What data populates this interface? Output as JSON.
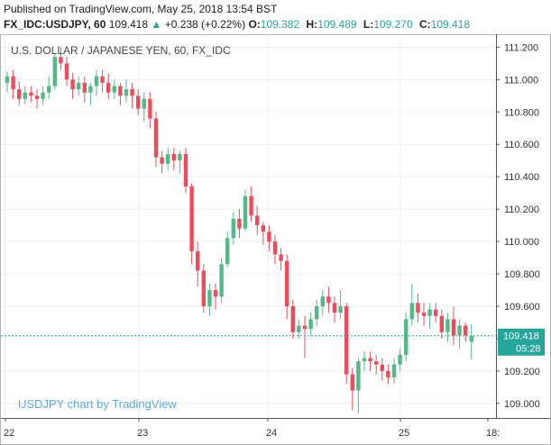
{
  "header": {
    "published": "Published on TradingView.com, May 25, 2018 13:54 BST",
    "symbol": "FX_IDC:USDJPY, 60",
    "last": "109.418",
    "change_arrow": "▲",
    "change": "+0.238 (+0.22%)",
    "o_label": "O:",
    "o_value": "109.382",
    "h_label": "H:",
    "h_value": "109.489",
    "l_label": "L:",
    "l_value": "109.270",
    "c_label": "C:",
    "c_value": "109.418"
  },
  "colors": {
    "up": "#53b987",
    "down": "#eb4d5c",
    "grid": "#e9eff3",
    "axis": "#555555",
    "last_price_bg": "#26a69a",
    "watermark": "#5aa9e6"
  },
  "chart_data": {
    "type": "candlestick",
    "title": "U.S. DOLLAR / JAPANESE YEN, 60, FX_IDC",
    "watermark": "USDJPY chart by TradingView",
    "y_ticks": [
      "111.200",
      "111.000",
      "110.800",
      "110.600",
      "110.400",
      "110.200",
      "110.000",
      "109.800",
      "109.600",
      "109.400",
      "109.200",
      "109.000"
    ],
    "y_tick_values": [
      111.2,
      111.0,
      110.8,
      110.6,
      110.4,
      110.2,
      110.0,
      109.8,
      109.6,
      109.4,
      109.2,
      109.0
    ],
    "x_ticks": [
      "22",
      "23",
      "24",
      "25",
      "18:"
    ],
    "last_price_label": "109.418",
    "countdown_label": "05:28",
    "last_price": 109.418,
    "ylim": [
      108.91,
      111.28
    ],
    "candles": [
      [
        110.98,
        111.02,
        110.92,
        111.05
      ],
      [
        111.02,
        110.94,
        110.88,
        111.06
      ],
      [
        110.94,
        110.88,
        110.84,
        110.99
      ],
      [
        110.88,
        110.92,
        110.85,
        110.96
      ],
      [
        110.92,
        110.9,
        110.86,
        110.96
      ],
      [
        110.9,
        110.88,
        110.82,
        110.94
      ],
      [
        110.88,
        110.92,
        110.84,
        110.96
      ],
      [
        110.92,
        110.96,
        110.88,
        111.02
      ],
      [
        110.96,
        111.14,
        110.94,
        111.16
      ],
      [
        111.14,
        111.1,
        111.06,
        111.2
      ],
      [
        111.1,
        111.0,
        110.96,
        111.14
      ],
      [
        111.0,
        110.94,
        110.88,
        111.04
      ],
      [
        110.94,
        110.98,
        110.9,
        111.02
      ],
      [
        110.98,
        110.92,
        110.86,
        111.02
      ],
      [
        110.92,
        110.96,
        110.84,
        110.98
      ],
      [
        110.96,
        111.02,
        110.9,
        111.06
      ],
      [
        111.02,
        110.98,
        110.92,
        111.06
      ],
      [
        110.98,
        110.92,
        110.88,
        111.04
      ],
      [
        110.92,
        110.96,
        110.88,
        111.0
      ],
      [
        110.96,
        110.9,
        110.84,
        110.98
      ],
      [
        110.9,
        110.94,
        110.86,
        111.0
      ],
      [
        110.94,
        110.9,
        110.82,
        110.98
      ],
      [
        110.9,
        110.82,
        110.78,
        110.94
      ],
      [
        110.82,
        110.88,
        110.74,
        110.92
      ],
      [
        110.88,
        110.76,
        110.7,
        110.92
      ],
      [
        110.76,
        110.52,
        110.46,
        110.8
      ],
      [
        110.52,
        110.48,
        110.42,
        110.56
      ],
      [
        110.48,
        110.54,
        110.44,
        110.58
      ],
      [
        110.54,
        110.5,
        110.44,
        110.58
      ],
      [
        110.5,
        110.54,
        110.42,
        110.56
      ],
      [
        110.54,
        110.34,
        110.3,
        110.58
      ],
      [
        110.34,
        109.94,
        109.86,
        110.36
      ],
      [
        109.94,
        109.82,
        109.72,
        110.0
      ],
      [
        109.82,
        109.6,
        109.56,
        109.86
      ],
      [
        109.6,
        109.7,
        109.54,
        109.74
      ],
      [
        109.7,
        109.66,
        109.58,
        109.74
      ],
      [
        109.66,
        109.86,
        109.62,
        109.9
      ],
      [
        109.86,
        110.02,
        109.84,
        110.06
      ],
      [
        110.02,
        110.14,
        109.98,
        110.18
      ],
      [
        110.14,
        110.08,
        110.02,
        110.2
      ],
      [
        110.08,
        110.28,
        110.06,
        110.32
      ],
      [
        110.28,
        110.16,
        110.12,
        110.34
      ],
      [
        110.16,
        110.1,
        110.04,
        110.22
      ],
      [
        110.1,
        110.06,
        109.98,
        110.12
      ],
      [
        110.06,
        110.0,
        109.94,
        110.1
      ],
      [
        110.0,
        109.92,
        109.86,
        110.04
      ],
      [
        109.92,
        109.88,
        109.82,
        109.96
      ],
      [
        109.88,
        109.6,
        109.52,
        109.92
      ],
      [
        109.6,
        109.44,
        109.4,
        109.64
      ],
      [
        109.44,
        109.48,
        109.4,
        109.52
      ],
      [
        109.48,
        109.46,
        109.28,
        109.54
      ],
      [
        109.46,
        109.52,
        109.42,
        109.56
      ],
      [
        109.52,
        109.6,
        109.48,
        109.64
      ],
      [
        109.6,
        109.66,
        109.54,
        109.7
      ],
      [
        109.66,
        109.62,
        109.56,
        109.72
      ],
      [
        109.62,
        109.56,
        109.5,
        109.66
      ],
      [
        109.56,
        109.6,
        109.52,
        109.7
      ],
      [
        109.6,
        109.18,
        109.12,
        109.62
      ],
      [
        109.18,
        109.08,
        108.96,
        109.22
      ],
      [
        109.08,
        109.26,
        108.94,
        109.28
      ],
      [
        109.26,
        109.28,
        109.2,
        109.32
      ],
      [
        109.28,
        109.26,
        109.2,
        109.32
      ],
      [
        109.26,
        109.24,
        109.18,
        109.3
      ],
      [
        109.24,
        109.2,
        109.14,
        109.28
      ],
      [
        109.2,
        109.16,
        109.12,
        109.24
      ],
      [
        109.16,
        109.24,
        109.12,
        109.28
      ],
      [
        109.24,
        109.3,
        109.2,
        109.34
      ],
      [
        109.3,
        109.52,
        109.26,
        109.56
      ],
      [
        109.52,
        109.62,
        109.48,
        109.74
      ],
      [
        109.62,
        109.56,
        109.5,
        109.68
      ],
      [
        109.56,
        109.54,
        109.48,
        109.62
      ],
      [
        109.54,
        109.58,
        109.46,
        109.62
      ],
      [
        109.58,
        109.54,
        109.5,
        109.62
      ],
      [
        109.54,
        109.44,
        109.4,
        109.58
      ],
      [
        109.44,
        109.52,
        109.38,
        109.56
      ],
      [
        109.52,
        109.42,
        109.36,
        109.6
      ],
      [
        109.42,
        109.48,
        109.34,
        109.52
      ],
      [
        109.48,
        109.42,
        109.38,
        109.5
      ],
      [
        109.38,
        109.418,
        109.27,
        109.489
      ]
    ],
    "x_tick_candle_index": [
      0,
      20,
      40,
      60,
      78
    ]
  }
}
